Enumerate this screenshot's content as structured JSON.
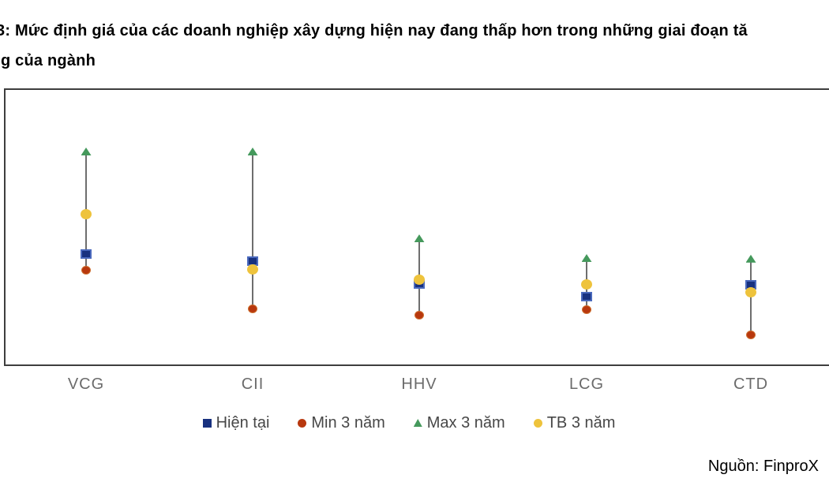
{
  "title": {
    "line1": "3: Mức định giá của các doanh nghiệp xây dựng hiện nay đang thấp hơn trong những giai đoạn tă",
    "line2": "g của ngành"
  },
  "source": {
    "label": "Nguồn: FinproX"
  },
  "chart_data": {
    "type": "scatter",
    "subtype": "high-low valuation range chart with point markers",
    "title": "",
    "categories": [
      "VCG",
      "CII",
      "HHV",
      "LCG",
      "CTD"
    ],
    "series": [
      {
        "name": "Hiện tại",
        "marker": "square",
        "color": "#18317f",
        "edge_color": "#4a69bd",
        "values": [
          40.1,
          37.5,
          29.3,
          24.7,
          29.0
        ]
      },
      {
        "name": "Min 3 năm",
        "marker": "circle",
        "color": "#b8380e",
        "edge_color": "#cc6d2d",
        "values": [
          34.1,
          20.2,
          17.9,
          19.9,
          10.8
        ]
      },
      {
        "name": "Max 3 năm",
        "marker": "triangle",
        "color": "#45995c",
        "edge_color": "#8a9298",
        "values": [
          77.0,
          77.0,
          45.7,
          38.6,
          38.4
        ]
      },
      {
        "name": "TB 3 năm",
        "marker": "circle",
        "color": "#eec33c",
        "edge_color": "#e0ac1e",
        "values": [
          54.5,
          34.4,
          30.7,
          29.0,
          26.4
        ]
      }
    ],
    "xlabel": "",
    "ylabel": "",
    "ylim": [
      0,
      100
    ],
    "axis_note": "no numeric y-axis shown in figure; values are relative positions (0 = plot bottom, 100 = plot top)",
    "range_line_color": "#6e6e6e",
    "legend_position": "bottom",
    "grid": false
  }
}
